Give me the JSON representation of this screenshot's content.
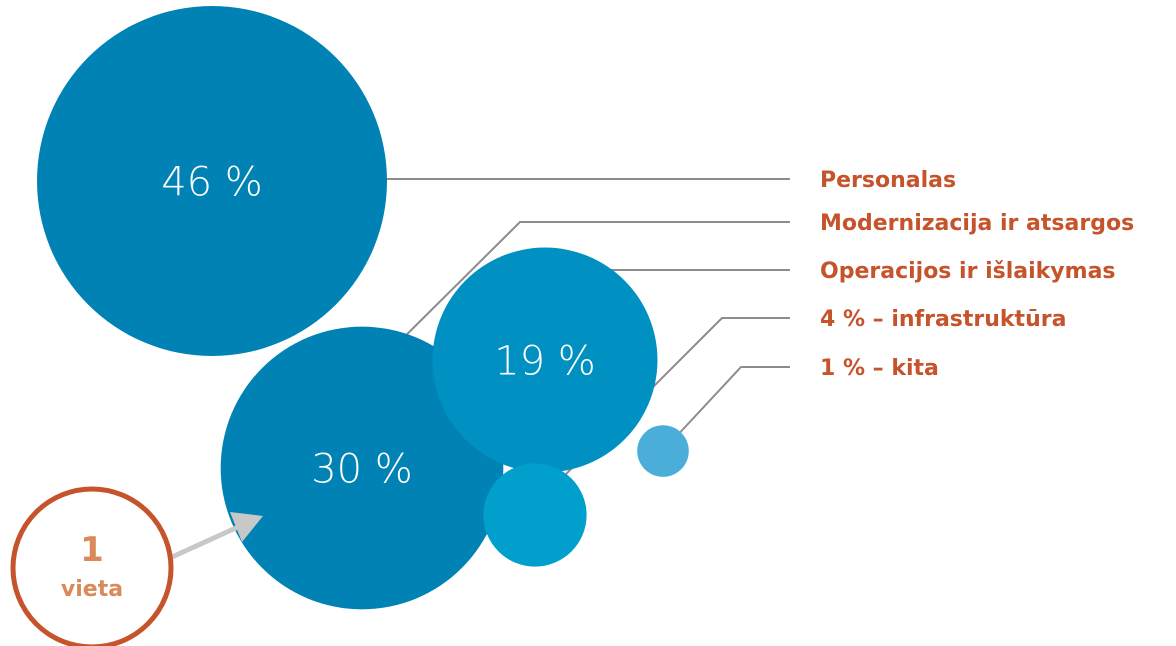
{
  "chart_data": {
    "type": "bubble",
    "title": "",
    "series": [
      {
        "label": "Personalas",
        "value": 46,
        "value_label": "46 %",
        "color": "#0082b5"
      },
      {
        "label": "Modernizacija ir atsargos",
        "value": 30,
        "value_label": "30 %",
        "color": "#0082b5"
      },
      {
        "label": "Operacijos ir išlaikymas",
        "value": 19,
        "value_label": "19 %",
        "color": "#0090c2"
      },
      {
        "label": "4 % – infrastruktūra",
        "value": 4,
        "value_label": "",
        "color": "#009fcc"
      },
      {
        "label": "1 % – kita",
        "value": 1,
        "value_label": "",
        "color": "#4aaed8"
      }
    ],
    "legend_color": "#c5532b",
    "leader_color": "#8c8c8c"
  },
  "badge": {
    "number": "1",
    "word": "vieta",
    "ring_color": "#c5532b",
    "text_color": "#d9895a",
    "arrow_color": "#c8c8c8"
  }
}
